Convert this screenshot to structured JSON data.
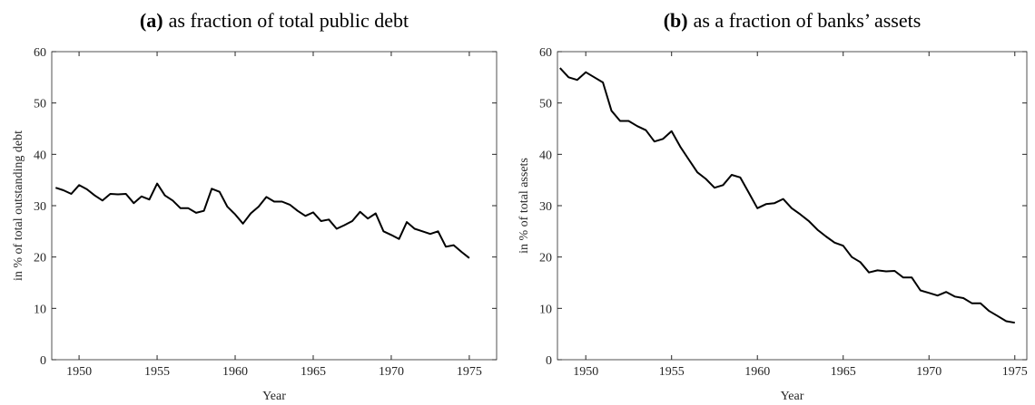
{
  "chart_data": [
    {
      "type": "line",
      "label": "(a)",
      "title": "as fraction of total public debt",
      "xlabel": "Year",
      "ylabel": "in % of total outstanding debt",
      "xlim": [
        1948.25,
        1976.75
      ],
      "ylim": [
        0,
        60
      ],
      "xticks": [
        1950,
        1955,
        1960,
        1965,
        1970,
        1975
      ],
      "yticks": [
        0,
        10,
        20,
        30,
        40,
        50,
        60
      ],
      "x": [
        1948.5,
        1949,
        1949.5,
        1950,
        1950.5,
        1951,
        1951.5,
        1952,
        1952.5,
        1953,
        1953.5,
        1954,
        1954.5,
        1955,
        1955.5,
        1956,
        1956.5,
        1957,
        1957.5,
        1958,
        1958.5,
        1959,
        1959.5,
        1960,
        1960.5,
        1961,
        1961.5,
        1962,
        1962.5,
        1963,
        1963.5,
        1964,
        1964.5,
        1965,
        1965.5,
        1966,
        1966.5,
        1967,
        1967.5,
        1968,
        1968.5,
        1969,
        1969.5,
        1970,
        1970.5,
        1971,
        1971.5,
        1972,
        1972.5,
        1973,
        1973.5,
        1974,
        1974.5,
        1975
      ],
      "color": "#000000",
      "values": [
        33.5,
        33,
        32.3,
        34,
        33.2,
        32,
        31,
        32.3,
        32.2,
        32.3,
        30.5,
        31.8,
        31.2,
        34.3,
        32,
        31,
        29.5,
        29.5,
        28.6,
        29,
        33.3,
        32.7,
        29.8,
        28.3,
        26.5,
        28.5,
        29.8,
        31.7,
        30.8,
        30.8,
        30.2,
        29,
        28,
        28.7,
        27,
        27.3,
        25.5,
        26.2,
        27,
        28.8,
        27.5,
        28.5,
        25,
        24.3,
        23.5,
        26.8,
        25.5,
        25,
        24.5,
        25,
        22,
        22.3,
        21,
        19.8
      ]
    },
    {
      "type": "line",
      "label": "(b)",
      "title": "as a fraction of banks’ assets",
      "xlabel": "Year",
      "ylabel": "in % of total assets",
      "xlim": [
        1948.35,
        1975.7
      ],
      "ylim": [
        0,
        60
      ],
      "xticks": [
        1950,
        1955,
        1960,
        1965,
        1970,
        1975
      ],
      "yticks": [
        0,
        10,
        20,
        30,
        40,
        50,
        60
      ],
      "x": [
        1948.5,
        1949,
        1949.5,
        1950,
        1950.5,
        1951,
        1951.5,
        1952,
        1952.5,
        1953,
        1953.5,
        1954,
        1954.5,
        1955,
        1955.5,
        1956,
        1956.5,
        1957,
        1957.5,
        1958,
        1958.5,
        1959,
        1959.5,
        1960,
        1960.5,
        1961,
        1961.5,
        1962,
        1962.5,
        1963,
        1963.5,
        1964,
        1964.5,
        1965,
        1965.5,
        1966,
        1966.5,
        1967,
        1967.5,
        1968,
        1968.5,
        1969,
        1969.5,
        1970,
        1970.5,
        1971,
        1971.5,
        1972,
        1972.5,
        1973,
        1973.5,
        1974,
        1974.5,
        1975
      ],
      "color": "#000000",
      "values": [
        56.8,
        55,
        54.5,
        56,
        55,
        54,
        48.5,
        46.5,
        46.5,
        45.5,
        44.7,
        42.5,
        43,
        44.5,
        41.5,
        39,
        36.5,
        35.2,
        33.5,
        34,
        36,
        35.5,
        32.5,
        29.5,
        30.3,
        30.5,
        31.3,
        29.5,
        28.3,
        27,
        25.3,
        24,
        22.8,
        22.2,
        20,
        19,
        17,
        17.4,
        17.2,
        17.3,
        16,
        16,
        13.5,
        13,
        12.5,
        13.2,
        12.3,
        12,
        11,
        11,
        9.5,
        8.5,
        7.5,
        7.2
      ]
    }
  ]
}
